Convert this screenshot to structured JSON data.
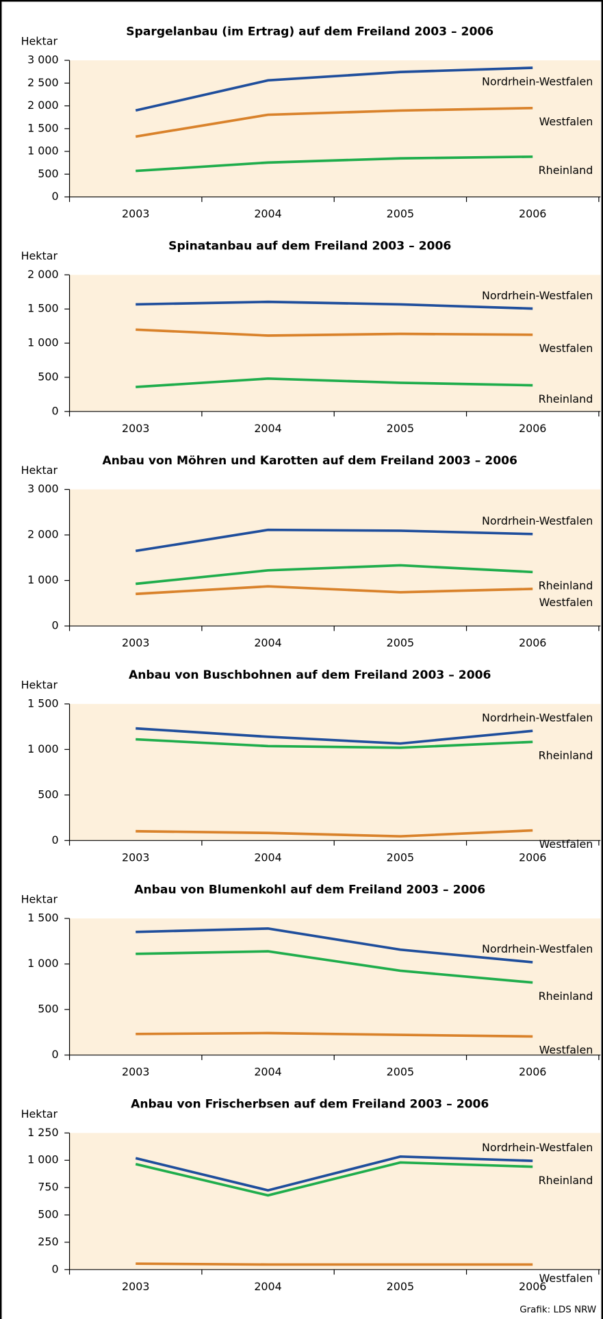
{
  "chart_data": [
    {
      "type": "line",
      "title": "Spargelanbau (im Ertrag) auf dem Freiland 2003 – 2006",
      "y_label": "Hektar",
      "categories": [
        "2003",
        "2004",
        "2005",
        "2006"
      ],
      "ylim": [
        0,
        3000
      ],
      "yticks": [
        0,
        500,
        {
          "value": 1000,
          "label": "1 000"
        },
        {
          "value": 1500,
          "label": "1 500"
        },
        {
          "value": 2000,
          "label": "2 000"
        },
        {
          "value": 2500,
          "label": "2 500"
        },
        {
          "value": 3000,
          "label": "3 000"
        }
      ],
      "series": [
        {
          "name": "Nordrhein-Westfalen",
          "color": "#1f4e9c",
          "values": [
            1900,
            2560,
            2744,
            2836
          ]
        },
        {
          "name": "Westfalen",
          "color": "#d9822b",
          "values": [
            1326,
            1805,
            1897,
            1952
          ]
        },
        {
          "name": "Rheinland",
          "color": "#1fad4c",
          "values": [
            571,
            755,
            847,
            884
          ]
        }
      ]
    },
    {
      "type": "line",
      "title": "Spinatanbau auf dem Freiland 2003 – 2006",
      "y_label": "Hektar",
      "categories": [
        "2003",
        "2004",
        "2005",
        "2006"
      ],
      "ylim": [
        0,
        2000
      ],
      "yticks": [
        0,
        500,
        {
          "value": 1000,
          "label": "1 000"
        },
        {
          "value": 1500,
          "label": "1 500"
        },
        {
          "value": 2000,
          "label": "2 000"
        }
      ],
      "series": [
        {
          "name": "Nordrhein-Westfalen",
          "color": "#1f4e9c",
          "values": [
            1568,
            1605,
            1568,
            1506
          ]
        },
        {
          "name": "Westfalen",
          "color": "#d9822b",
          "values": [
            1198,
            1111,
            1136,
            1123
          ]
        },
        {
          "name": "Rheinland",
          "color": "#1fad4c",
          "values": [
            358,
            481,
            420,
            383
          ]
        }
      ]
    },
    {
      "type": "line",
      "title": "Anbau von Möhren und Karotten auf dem Freiland 2003 – 2006",
      "y_label": "Hektar",
      "categories": [
        "2003",
        "2004",
        "2005",
        "2006"
      ],
      "ylim": [
        0,
        3000
      ],
      "yticks": [
        0,
        {
          "value": 1000,
          "label": "1 000"
        },
        {
          "value": 2000,
          "label": "2 000"
        },
        {
          "value": 3000,
          "label": "3 000"
        }
      ],
      "series": [
        {
          "name": "Nordrhein-Westfalen",
          "color": "#1f4e9c",
          "values": [
            1648,
            2111,
            2093,
            2019
          ]
        },
        {
          "name": "Rheinland",
          "color": "#1fad4c",
          "values": [
            926,
            1222,
            1333,
            1185
          ]
        },
        {
          "name": "Westfalen",
          "color": "#d9822b",
          "values": [
            704,
            870,
            741,
            815
          ]
        }
      ]
    },
    {
      "type": "line",
      "title": "Anbau von Buschbohnen auf dem Freiland 2003 – 2006",
      "y_label": "Hektar",
      "categories": [
        "2003",
        "2004",
        "2005",
        "2006"
      ],
      "ylim": [
        0,
        1500
      ],
      "yticks": [
        0,
        500,
        {
          "value": 1000,
          "label": "1 000"
        },
        {
          "value": 1500,
          "label": "1 500"
        }
      ],
      "series": [
        {
          "name": "Nordrhein-Westfalen",
          "color": "#1f4e9c",
          "values": [
            1231,
            1139,
            1065,
            1204
          ]
        },
        {
          "name": "Rheinland",
          "color": "#1fad4c",
          "values": [
            1111,
            1037,
            1019,
            1083
          ]
        },
        {
          "name": "Westfalen",
          "color": "#d9822b",
          "values": [
            102,
            83,
            46,
            111
          ]
        }
      ]
    },
    {
      "type": "line",
      "title": "Anbau von Blumenkohl auf dem Freiland 2003 – 2006",
      "y_label": "Hektar",
      "categories": [
        "2003",
        "2004",
        "2005",
        "2006"
      ],
      "ylim": [
        0,
        1500
      ],
      "yticks": [
        0,
        500,
        {
          "value": 1000,
          "label": "1 000"
        },
        {
          "value": 1500,
          "label": "1 500"
        }
      ],
      "series": [
        {
          "name": "Nordrhein-Westfalen",
          "color": "#1f4e9c",
          "values": [
            1352,
            1389,
            1157,
            1019
          ]
        },
        {
          "name": "Rheinland",
          "color": "#1fad4c",
          "values": [
            1111,
            1139,
            926,
            796
          ]
        },
        {
          "name": "Westfalen",
          "color": "#d9822b",
          "values": [
            231,
            241,
            222,
            204
          ]
        }
      ]
    },
    {
      "type": "line",
      "title": "Anbau von Frischerbsen auf dem Freiland 2003 – 2006",
      "y_label": "Hektar",
      "categories": [
        "2003",
        "2004",
        "2005",
        "2006"
      ],
      "ylim": [
        0,
        1250
      ],
      "yticks": [
        0,
        250,
        500,
        750,
        {
          "value": 1000,
          "label": "1 000"
        },
        {
          "value": 1250,
          "label": "1 250"
        }
      ],
      "series": [
        {
          "name": "Nordrhein-Westfalen",
          "color": "#1f4e9c",
          "values": [
            1019,
            725,
            1034,
            995
          ]
        },
        {
          "name": "Rheinland",
          "color": "#1fad4c",
          "values": [
            965,
            679,
            980,
            941
          ]
        },
        {
          "name": "Westfalen",
          "color": "#d9822b",
          "values": [
            54,
            46,
            46,
            46
          ]
        }
      ]
    }
  ],
  "footer": "Grafik: LDS NRW"
}
